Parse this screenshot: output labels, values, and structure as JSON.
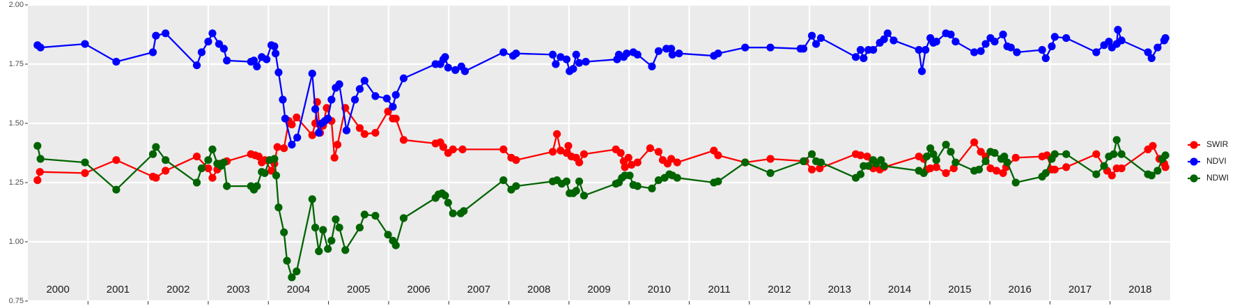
{
  "chart_data": {
    "type": "line",
    "xlim": [
      2000,
      2019
    ],
    "xticks": [
      2001,
      2002,
      2003,
      2004,
      2005,
      2006,
      2007,
      2008,
      2009,
      2010,
      2011,
      2012,
      2013,
      2014,
      2015,
      2016,
      2017,
      2018
    ],
    "ylim": [
      0.75,
      2.0
    ],
    "yticks": [
      0.75,
      {
        "value": 1.0,
        "label": "1.00"
      },
      1.25,
      {
        "value": 1.5,
        "label": "1.50"
      },
      1.75,
      {
        "value": 2.0,
        "label": "2.00"
      }
    ],
    "grid": true,
    "legend": "right",
    "annotations": [
      "2000",
      "2001",
      "2002",
      "2003",
      "2004",
      "2005",
      "2006",
      "2007",
      "2008",
      "2009",
      "2010",
      "2011",
      "2012",
      "2013",
      "2014",
      "2015",
      "2016",
      "2017",
      "2018"
    ],
    "series": [
      {
        "name": "SWIR",
        "color": "#ff0000",
        "x": [
          2000.16,
          2000.2,
          2000.95,
          2001.47,
          2002.08,
          2002.13,
          2002.29,
          2002.81,
          2003.0,
          2003.07,
          2003.15,
          2003.21,
          2003.31,
          2003.71,
          2003.78,
          2003.84,
          2003.89,
          2003.94,
          2004.05,
          2004.1,
          2004.15,
          2004.26,
          2004.34,
          2004.39,
          2004.47,
          2004.73,
          2004.78,
          2004.81,
          2004.86,
          2004.91,
          2004.97,
          2005.05,
          2005.1,
          2005.15,
          2005.28,
          2005.52,
          2005.6,
          2005.78,
          2005.99,
          2006.07,
          2006.12,
          2006.25,
          2006.78,
          2006.86,
          2006.91,
          2006.99,
          2007.07,
          2007.23,
          2007.91,
          2008.04,
          2008.12,
          2008.73,
          2008.8,
          2008.86,
          2008.96,
          2008.99,
          2009.04,
          2009.12,
          2009.17,
          2009.25,
          2009.78,
          2009.86,
          2009.91,
          2009.93,
          2009.99,
          2010.04,
          2010.14,
          2010.35,
          2010.49,
          2010.56,
          2010.64,
          2010.7,
          2010.8,
          2011.41,
          2011.48,
          2011.93,
          2012.35,
          2012.93,
          2013.04,
          2013.17,
          2013.77,
          2013.85,
          2013.96,
          2014.06,
          2014.17,
          2014.24,
          2014.82,
          2014.9,
          2014.95,
          2015.01,
          2015.11,
          2015.27,
          2015.4,
          2015.74,
          2015.85,
          2015.93,
          2016.01,
          2016.11,
          2016.22,
          2016.27,
          2016.43,
          2016.87,
          2016.95,
          2017.03,
          2017.08,
          2017.27,
          2017.77,
          2017.95,
          2018.03,
          2018.11,
          2018.19,
          2018.63,
          2018.71,
          2018.82,
          2018.9,
          2018.92
        ],
        "values": [
          1.26,
          1.295,
          1.29,
          1.345,
          1.275,
          1.27,
          1.3,
          1.36,
          1.31,
          1.27,
          1.305,
          1.33,
          1.34,
          1.37,
          1.365,
          1.36,
          1.335,
          1.345,
          1.3,
          1.33,
          1.4,
          1.395,
          1.51,
          1.495,
          1.525,
          1.45,
          1.5,
          1.59,
          1.46,
          1.49,
          1.565,
          1.51,
          1.355,
          1.41,
          1.565,
          1.48,
          1.455,
          1.46,
          1.55,
          1.52,
          1.52,
          1.43,
          1.415,
          1.42,
          1.4,
          1.375,
          1.39,
          1.39,
          1.39,
          1.355,
          1.345,
          1.38,
          1.455,
          1.385,
          1.375,
          1.405,
          1.36,
          1.355,
          1.335,
          1.37,
          1.39,
          1.375,
          1.34,
          1.315,
          1.355,
          1.325,
          1.335,
          1.395,
          1.38,
          1.345,
          1.33,
          1.35,
          1.335,
          1.385,
          1.365,
          1.335,
          1.35,
          1.34,
          1.305,
          1.31,
          1.37,
          1.365,
          1.36,
          1.31,
          1.305,
          1.315,
          1.36,
          1.35,
          1.305,
          1.31,
          1.315,
          1.29,
          1.31,
          1.42,
          1.38,
          1.36,
          1.31,
          1.3,
          1.29,
          1.315,
          1.355,
          1.36,
          1.365,
          1.305,
          1.305,
          1.315,
          1.37,
          1.3,
          1.28,
          1.31,
          1.31,
          1.39,
          1.405,
          1.35,
          1.33,
          1.315
        ]
      },
      {
        "name": "NDVI",
        "color": "#0000ff",
        "x": [
          2000.16,
          2000.21,
          2000.95,
          2001.47,
          2002.08,
          2002.13,
          2002.29,
          2002.81,
          2002.89,
          2003.0,
          2003.07,
          2003.18,
          2003.26,
          2003.31,
          2003.71,
          2003.76,
          2003.81,
          2003.89,
          2003.97,
          2004.05,
          2004.1,
          2004.12,
          2004.17,
          2004.24,
          2004.28,
          2004.39,
          2004.48,
          2004.73,
          2004.78,
          2004.84,
          2004.89,
          2004.94,
          2004.99,
          2005.05,
          2005.12,
          2005.18,
          2005.3,
          2005.44,
          2005.52,
          2005.6,
          2005.78,
          2005.97,
          2006.07,
          2006.12,
          2006.25,
          2006.78,
          2006.86,
          2006.91,
          2006.94,
          2006.99,
          2007.11,
          2007.21,
          2007.27,
          2007.91,
          2008.07,
          2008.12,
          2008.73,
          2008.78,
          2008.86,
          2008.96,
          2009.01,
          2009.07,
          2009.12,
          2009.17,
          2009.28,
          2009.8,
          2009.83,
          2009.91,
          2009.96,
          2010.07,
          2010.14,
          2010.38,
          2010.49,
          2010.62,
          2010.7,
          2010.72,
          2010.83,
          2011.41,
          2011.48,
          2011.93,
          2012.35,
          2012.85,
          2012.9,
          2013.04,
          2013.11,
          2013.19,
          2013.77,
          2013.85,
          2013.9,
          2013.98,
          2014.06,
          2014.17,
          2014.24,
          2014.3,
          2014.4,
          2014.82,
          2014.87,
          2014.93,
          2015.01,
          2015.06,
          2015.11,
          2015.27,
          2015.35,
          2015.43,
          2015.74,
          2015.85,
          2015.93,
          2016.01,
          2016.08,
          2016.22,
          2016.29,
          2016.35,
          2016.45,
          2016.87,
          2016.93,
          2017.03,
          2017.08,
          2017.27,
          2017.77,
          2017.9,
          2017.98,
          2018.03,
          2018.11,
          2018.13,
          2018.19,
          2018.63,
          2018.69,
          2018.79,
          2018.9,
          2018.92
        ],
        "values": [
          1.83,
          1.82,
          1.835,
          1.76,
          1.8,
          1.87,
          1.88,
          1.745,
          1.8,
          1.845,
          1.88,
          1.835,
          1.815,
          1.765,
          1.76,
          1.765,
          1.74,
          1.78,
          1.77,
          1.83,
          1.825,
          1.795,
          1.715,
          1.6,
          1.52,
          1.41,
          1.44,
          1.71,
          1.56,
          1.46,
          1.5,
          1.51,
          1.52,
          1.6,
          1.65,
          1.665,
          1.47,
          1.6,
          1.645,
          1.68,
          1.615,
          1.605,
          1.57,
          1.62,
          1.69,
          1.75,
          1.75,
          1.77,
          1.78,
          1.735,
          1.725,
          1.74,
          1.72,
          1.8,
          1.785,
          1.795,
          1.79,
          1.75,
          1.78,
          1.77,
          1.72,
          1.73,
          1.79,
          1.755,
          1.76,
          1.77,
          1.79,
          1.78,
          1.795,
          1.8,
          1.79,
          1.74,
          1.805,
          1.815,
          1.815,
          1.79,
          1.795,
          1.785,
          1.795,
          1.82,
          1.82,
          1.815,
          1.815,
          1.87,
          1.835,
          1.86,
          1.78,
          1.81,
          1.775,
          1.81,
          1.81,
          1.84,
          1.855,
          1.88,
          1.85,
          1.81,
          1.72,
          1.81,
          1.86,
          1.84,
          1.845,
          1.88,
          1.875,
          1.845,
          1.8,
          1.805,
          1.835,
          1.86,
          1.845,
          1.875,
          1.825,
          1.82,
          1.8,
          1.81,
          1.775,
          1.825,
          1.865,
          1.86,
          1.8,
          1.83,
          1.845,
          1.82,
          1.835,
          1.895,
          1.85,
          1.8,
          1.775,
          1.82,
          1.85,
          1.86
        ]
      },
      {
        "name": "NDWI",
        "color": "#006400",
        "x": [
          2000.16,
          2000.21,
          2000.95,
          2001.47,
          2002.08,
          2002.13,
          2002.29,
          2002.81,
          2002.89,
          2003.0,
          2003.07,
          2003.15,
          2003.21,
          2003.26,
          2003.31,
          2003.71,
          2003.76,
          2003.81,
          2003.89,
          2003.94,
          2004.02,
          2004.1,
          2004.13,
          2004.17,
          2004.26,
          2004.31,
          2004.39,
          2004.47,
          2004.73,
          2004.78,
          2004.84,
          2004.91,
          2004.99,
          2005.05,
          2005.12,
          2005.18,
          2005.28,
          2005.52,
          2005.6,
          2005.78,
          2005.99,
          2006.07,
          2006.12,
          2006.25,
          2006.78,
          2006.83,
          2006.89,
          2006.94,
          2006.99,
          2007.07,
          2007.2,
          2007.25,
          2007.91,
          2008.04,
          2008.12,
          2008.73,
          2008.8,
          2008.88,
          2008.96,
          2009.01,
          2009.07,
          2009.12,
          2009.17,
          2009.25,
          2009.78,
          2009.83,
          2009.88,
          2009.93,
          2010.01,
          2010.07,
          2010.14,
          2010.38,
          2010.49,
          2010.59,
          2010.67,
          2010.72,
          2010.8,
          2011.41,
          2011.48,
          2011.93,
          2012.35,
          2012.9,
          2013.04,
          2013.11,
          2013.19,
          2013.77,
          2013.85,
          2013.9,
          2013.98,
          2014.06,
          2014.11,
          2014.19,
          2014.24,
          2014.82,
          2014.9,
          2014.95,
          2015.01,
          2015.06,
          2015.11,
          2015.27,
          2015.35,
          2015.43,
          2015.74,
          2015.82,
          2015.93,
          2016.01,
          2016.08,
          2016.19,
          2016.24,
          2016.29,
          2016.43,
          2016.87,
          2016.93,
          2017.03,
          2017.08,
          2017.27,
          2017.77,
          2017.9,
          2017.98,
          2018.06,
          2018.11,
          2018.19,
          2018.63,
          2018.69,
          2018.79,
          2018.87,
          2018.92
        ],
        "values": [
          1.405,
          1.35,
          1.335,
          1.22,
          1.37,
          1.4,
          1.345,
          1.25,
          1.31,
          1.345,
          1.39,
          1.33,
          1.32,
          1.335,
          1.235,
          1.235,
          1.22,
          1.235,
          1.295,
          1.29,
          1.345,
          1.35,
          1.28,
          1.145,
          1.04,
          0.92,
          0.85,
          0.875,
          1.18,
          1.06,
          0.96,
          1.05,
          0.97,
          1.005,
          1.095,
          1.06,
          0.965,
          1.06,
          1.115,
          1.11,
          1.03,
          1.005,
          0.985,
          1.1,
          1.185,
          1.2,
          1.205,
          1.195,
          1.165,
          1.12,
          1.12,
          1.13,
          1.26,
          1.22,
          1.235,
          1.255,
          1.26,
          1.245,
          1.255,
          1.205,
          1.205,
          1.215,
          1.255,
          1.195,
          1.245,
          1.25,
          1.27,
          1.28,
          1.28,
          1.24,
          1.235,
          1.225,
          1.26,
          1.27,
          1.285,
          1.28,
          1.27,
          1.25,
          1.255,
          1.335,
          1.29,
          1.34,
          1.37,
          1.34,
          1.335,
          1.27,
          1.285,
          1.32,
          1.32,
          1.345,
          1.33,
          1.345,
          1.32,
          1.3,
          1.29,
          1.36,
          1.395,
          1.37,
          1.345,
          1.41,
          1.38,
          1.335,
          1.3,
          1.305,
          1.34,
          1.38,
          1.375,
          1.35,
          1.36,
          1.335,
          1.25,
          1.275,
          1.29,
          1.35,
          1.37,
          1.37,
          1.285,
          1.32,
          1.36,
          1.37,
          1.43,
          1.37,
          1.285,
          1.28,
          1.3,
          1.35,
          1.365
        ]
      }
    ]
  }
}
